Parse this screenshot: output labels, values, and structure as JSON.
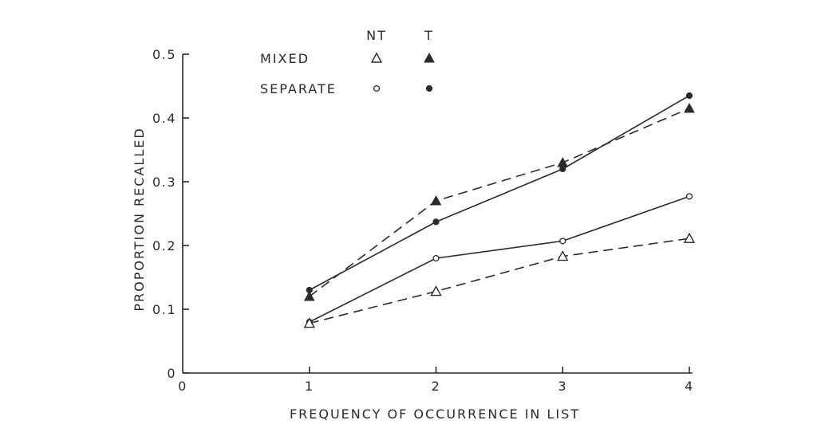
{
  "chart_data": {
    "type": "line",
    "xlabel": "FREQUENCY OF OCCURRENCE IN LIST",
    "ylabel": "PROPORTION RECALLED",
    "xlim": [
      0,
      4
    ],
    "ylim": [
      0,
      0.5
    ],
    "x_ticks": [
      "0",
      "1",
      "2",
      "3",
      "4"
    ],
    "y_ticks": [
      "0",
      "0.1",
      "0.2",
      "0.3",
      "0.4",
      "0.5"
    ],
    "grid": false,
    "legend": {
      "placement": "top-left",
      "column_headers": [
        "NT",
        "T"
      ],
      "rows": [
        "MIXED",
        "SEPARATE"
      ]
    },
    "series": [
      {
        "name": "MIXED T",
        "condition": "MIXED",
        "group": "T",
        "marker": "filled-triangle",
        "line": "dashed",
        "x": [
          1,
          2,
          3,
          4
        ],
        "values": [
          0.12,
          0.27,
          0.33,
          0.415
        ]
      },
      {
        "name": "SEPARATE T",
        "condition": "SEPARATE",
        "group": "T",
        "marker": "filled-circle",
        "line": "solid",
        "x": [
          1,
          2,
          3,
          4
        ],
        "values": [
          0.13,
          0.237,
          0.32,
          0.435
        ]
      },
      {
        "name": "SEPARATE NT",
        "condition": "SEPARATE",
        "group": "NT",
        "marker": "open-circle",
        "line": "solid",
        "x": [
          1,
          2,
          3,
          4
        ],
        "values": [
          0.08,
          0.18,
          0.207,
          0.277
        ]
      },
      {
        "name": "MIXED NT",
        "condition": "MIXED",
        "group": "NT",
        "marker": "open-triangle",
        "line": "dashed",
        "x": [
          1,
          2,
          3,
          4
        ],
        "values": [
          0.078,
          0.128,
          0.183,
          0.211
        ]
      }
    ]
  }
}
